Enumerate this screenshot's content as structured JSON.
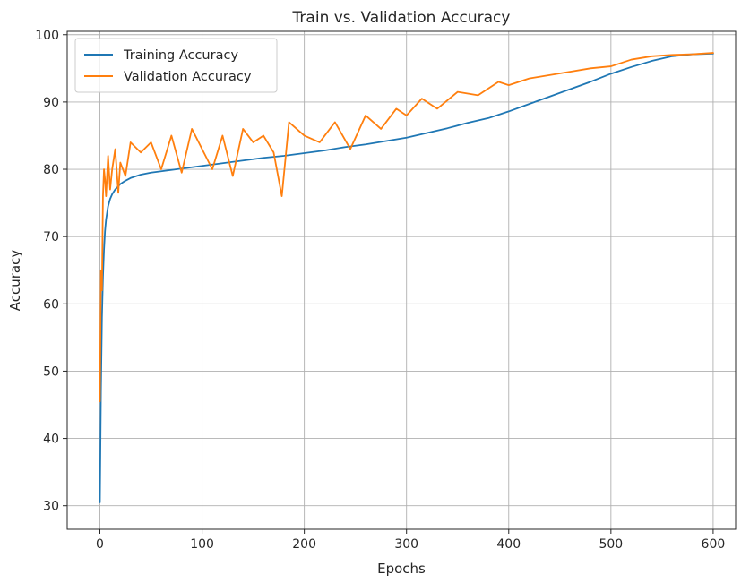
{
  "chart_data": {
    "type": "line",
    "title": "Train vs. Validation Accuracy",
    "xlabel": "Epochs",
    "ylabel": "Accuracy",
    "xlim": [
      -32,
      622
    ],
    "ylim": [
      26.5,
      100.5
    ],
    "xticks": [
      0,
      100,
      200,
      300,
      400,
      500,
      600
    ],
    "yticks": [
      30,
      40,
      50,
      60,
      70,
      80,
      90,
      100
    ],
    "grid": true,
    "legend_position": "top-left",
    "series": [
      {
        "name": "Training Accuracy",
        "color": "#1f77b4",
        "x": [
          0,
          1,
          2,
          3,
          4,
          5,
          6,
          8,
          10,
          12,
          15,
          20,
          25,
          30,
          40,
          50,
          60,
          80,
          100,
          120,
          140,
          160,
          180,
          200,
          220,
          240,
          260,
          280,
          300,
          320,
          340,
          360,
          380,
          400,
          420,
          440,
          460,
          480,
          500,
          520,
          540,
          560,
          580,
          600
        ],
        "values": [
          30.5,
          47,
          58,
          64,
          68,
          70.8,
          72.5,
          74.5,
          75.6,
          76.3,
          77.0,
          77.8,
          78.3,
          78.7,
          79.2,
          79.5,
          79.7,
          80.1,
          80.5,
          80.9,
          81.3,
          81.7,
          82.0,
          82.4,
          82.8,
          83.3,
          83.7,
          84.2,
          84.7,
          85.4,
          86.1,
          86.9,
          87.6,
          88.6,
          89.7,
          90.8,
          91.9,
          93.0,
          94.2,
          95.2,
          96.1,
          96.8,
          97.1,
          97.2
        ]
      },
      {
        "name": "Validation Accuracy",
        "color": "#ff7f0e",
        "x": [
          0,
          1,
          2,
          3,
          4,
          5,
          6,
          8,
          10,
          12,
          15,
          18,
          20,
          25,
          30,
          40,
          50,
          60,
          70,
          80,
          90,
          100,
          110,
          120,
          130,
          140,
          150,
          160,
          170,
          178,
          185,
          200,
          215,
          230,
          245,
          260,
          275,
          290,
          300,
          315,
          330,
          350,
          370,
          390,
          400,
          420,
          440,
          460,
          480,
          500,
          520,
          540,
          560,
          580,
          600
        ],
        "values": [
          45.5,
          65,
          62,
          76,
          80,
          78.5,
          76,
          82,
          77,
          80,
          83,
          76.5,
          81,
          79,
          84,
          82.5,
          84,
          80,
          85,
          79.5,
          86,
          83,
          80,
          85,
          79,
          86,
          84,
          85,
          82.5,
          76,
          87,
          85,
          84,
          87,
          83,
          88,
          86,
          89,
          88,
          90.5,
          89,
          91.5,
          91,
          93,
          92.5,
          93.5,
          94,
          94.5,
          95,
          95.3,
          96.3,
          96.8,
          97,
          97.1,
          97.3
        ]
      }
    ]
  }
}
